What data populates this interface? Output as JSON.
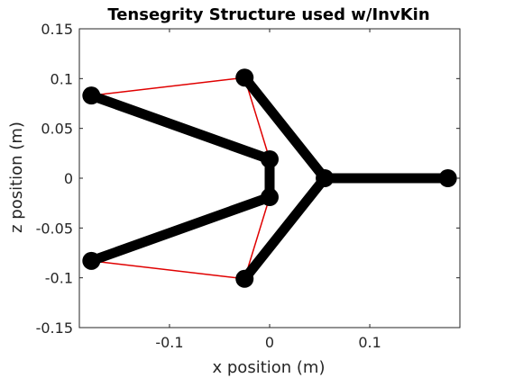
{
  "chart_data": {
    "type": "scatter",
    "title": "Tensegrity Structure used w/InvKin",
    "xlabel": "x position (m)",
    "ylabel": "z position (m)",
    "xlim": [
      -0.19,
      0.19
    ],
    "ylim": [
      -0.15,
      0.15
    ],
    "xticks": [
      -0.1,
      0,
      0.1
    ],
    "xtick_labels": [
      "-0.1",
      "0",
      "0.1"
    ],
    "yticks": [
      -0.15,
      -0.1,
      -0.05,
      0,
      0.05,
      0.1,
      0.15
    ],
    "ytick_labels": [
      "-0.15",
      "-0.1",
      "-0.05",
      "0",
      "0.05",
      "0.1",
      "0.15"
    ],
    "grid": false,
    "nodes": [
      {
        "x": -0.178,
        "y": 0.083
      },
      {
        "x": -0.025,
        "y": 0.101
      },
      {
        "x": 0.0,
        "y": 0.019
      },
      {
        "x": 0.0,
        "y": -0.019
      },
      {
        "x": -0.025,
        "y": -0.101
      },
      {
        "x": -0.178,
        "y": -0.083
      },
      {
        "x": 0.055,
        "y": 0.0
      },
      {
        "x": 0.178,
        "y": 0.0
      }
    ],
    "bars": [
      [
        0,
        2
      ],
      [
        2,
        3
      ],
      [
        3,
        5
      ],
      [
        1,
        6
      ],
      [
        4,
        6
      ],
      [
        6,
        7
      ]
    ],
    "strings": [
      [
        0,
        1
      ],
      [
        1,
        2
      ],
      [
        3,
        4
      ],
      [
        4,
        5
      ]
    ],
    "colors": {
      "bar": "#000000",
      "string": "#e00000",
      "node": "#000000",
      "axis": "#262626"
    }
  }
}
